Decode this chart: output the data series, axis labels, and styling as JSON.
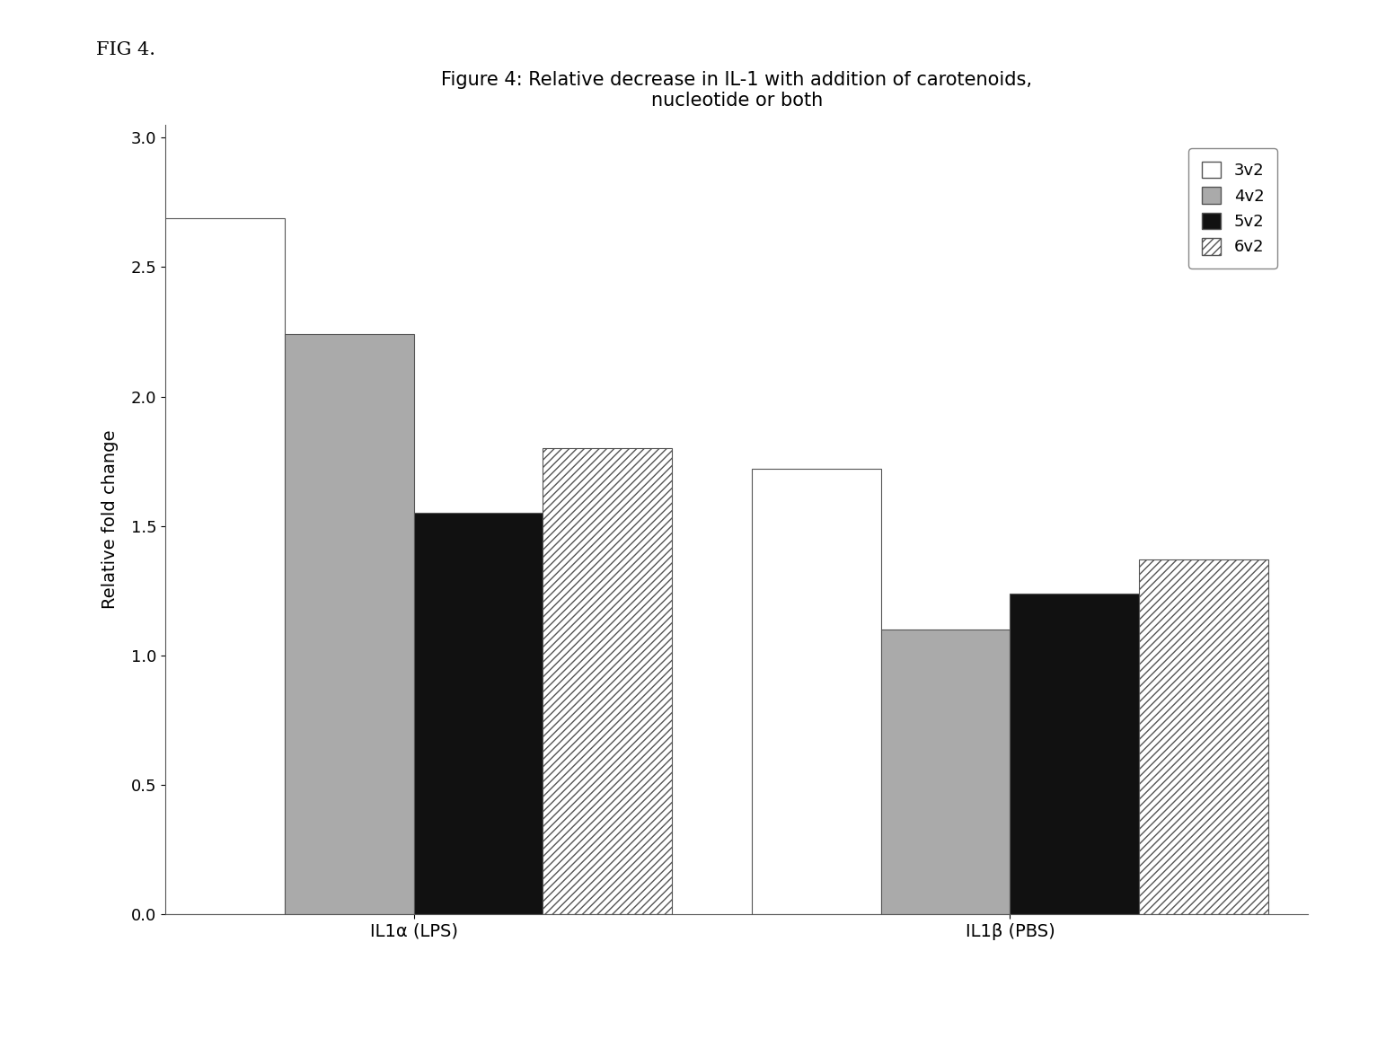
{
  "title": "Figure 4: Relative decrease in IL-1 with addition of carotenoids,\nnucleotide or both",
  "ylabel": "Relative fold change",
  "groups": [
    "IL1α (LPS)",
    "IL1β (PBS)"
  ],
  "series_labels": [
    "3v2",
    "4v2",
    "5v2",
    "6v2"
  ],
  "values": {
    "IL1a": [
      2.69,
      2.24,
      1.55,
      1.8
    ],
    "IL1b": [
      1.72,
      1.1,
      1.24,
      1.37
    ]
  },
  "ylim": [
    0,
    3.05
  ],
  "yticks": [
    0,
    0.5,
    1,
    1.5,
    2,
    2.5,
    3
  ],
  "bar_width": 0.13,
  "group_centers": [
    0.3,
    0.9
  ],
  "fig_label": "FIG 4.",
  "background_color": "#ffffff",
  "title_fontsize": 15,
  "axis_fontsize": 14,
  "tick_fontsize": 13,
  "legend_fontsize": 13,
  "bar_styles": [
    {
      "facecolor": "#ffffff",
      "edgecolor": "#555555",
      "hatch": ""
    },
    {
      "facecolor": "#aaaaaa",
      "edgecolor": "#555555",
      "hatch": ""
    },
    {
      "facecolor": "#111111",
      "edgecolor": "#555555",
      "hatch": ""
    },
    {
      "facecolor": "#ffffff",
      "edgecolor": "#555555",
      "hatch": "////"
    }
  ]
}
